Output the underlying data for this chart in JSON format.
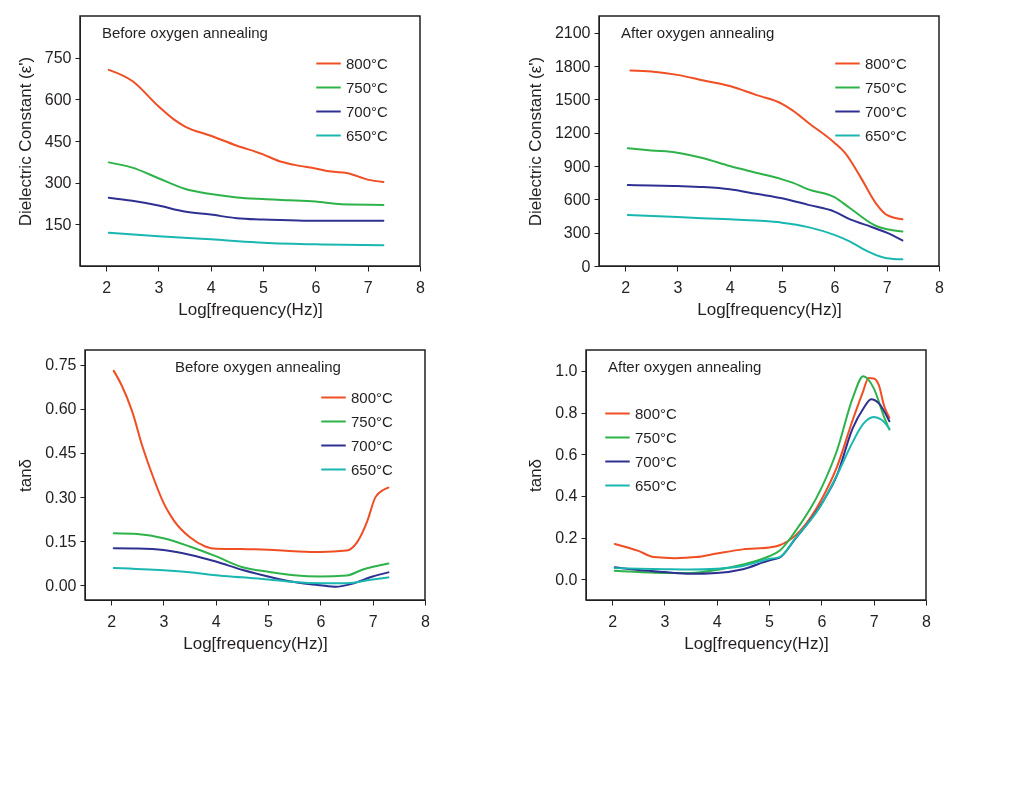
{
  "chart_data": [
    {
      "type": "line",
      "xlabel": "Log[frequency(Hz)]",
      "ylabel": "Dielectric Constant (ε')",
      "annotations": [
        "Before oxygen annealing"
      ],
      "legend": "top right",
      "grid": false,
      "xlim": [
        1.5,
        8
      ],
      "xticks": [
        2,
        3,
        4,
        5,
        6,
        7,
        8
      ],
      "ylim": [
        0,
        900
      ],
      "yticks": [
        150,
        300,
        450,
        600,
        750
      ],
      "series": [
        {
          "name": "800°C",
          "color": "#f04e23",
          "x": [
            2.05,
            2.5,
            3,
            3.3,
            3.5,
            4,
            4.5,
            5,
            5.3,
            5.6,
            6,
            6.3,
            6.6,
            7,
            7.3
          ],
          "values": [
            706,
            666,
            575,
            527,
            503,
            469,
            433,
            402,
            378,
            364,
            351,
            340,
            335,
            311,
            302
          ]
        },
        {
          "name": "750°C",
          "color": "#2db34a",
          "x": [
            2.05,
            2.5,
            3,
            3.5,
            4,
            4.5,
            5,
            5.5,
            6,
            6.5,
            7.3
          ],
          "values": [
            373,
            354,
            316,
            278,
            259,
            247,
            241,
            237,
            232,
            222,
            220
          ]
        },
        {
          "name": "700°C",
          "color": "#2e3192",
          "x": [
            2.05,
            2.5,
            3,
            3.5,
            4,
            4.5,
            5,
            5.5,
            6,
            7.3
          ],
          "values": [
            246,
            235,
            218,
            196,
            185,
            172,
            167,
            165,
            163,
            163
          ]
        },
        {
          "name": "650°C",
          "color": "#1ab7b0",
          "x": [
            2.05,
            3,
            4,
            5,
            6,
            7.3
          ],
          "values": [
            120,
            107,
            96,
            84,
            78,
            75
          ]
        }
      ]
    },
    {
      "type": "line",
      "xlabel": "Log[frequency(Hz)]",
      "ylabel": "Dielectric Constant (ε')",
      "annotations": [
        "After oxygen annealing"
      ],
      "legend": "top right",
      "grid": false,
      "xlim": [
        1.5,
        8
      ],
      "xticks": [
        2,
        3,
        4,
        5,
        6,
        7,
        8
      ],
      "ylim": [
        0,
        2250
      ],
      "yticks": [
        0,
        300,
        600,
        900,
        1200,
        1500,
        1800,
        2100
      ],
      "series": [
        {
          "name": "800°C",
          "color": "#f04e23",
          "x": [
            2.1,
            2.5,
            3,
            3.5,
            4,
            4.5,
            5,
            5.2,
            5.5,
            6,
            6.2,
            6.5,
            6.8,
            7,
            7.3
          ],
          "values": [
            1760,
            1750,
            1720,
            1670,
            1620,
            1540,
            1460,
            1400,
            1290,
            1110,
            1020,
            800,
            560,
            460,
            420
          ]
        },
        {
          "name": "750°C",
          "color": "#2db34a",
          "x": [
            2.05,
            2.5,
            3,
            3.5,
            4,
            4.5,
            5,
            5.2,
            5.5,
            6,
            6.3,
            6.8,
            7.3
          ],
          "values": [
            1060,
            1040,
            1020,
            970,
            900,
            840,
            780,
            750,
            690,
            620,
            520,
            360,
            310
          ]
        },
        {
          "name": "700°C",
          "color": "#2e3192",
          "x": [
            2.05,
            3,
            3.5,
            4,
            4.5,
            5,
            5.5,
            6,
            6.3,
            6.6,
            7,
            7.3
          ],
          "values": [
            730,
            720,
            710,
            690,
            650,
            610,
            550,
            490,
            420,
            370,
            300,
            230
          ]
        },
        {
          "name": "650°C",
          "color": "#1ab7b0",
          "x": [
            2.05,
            3,
            4,
            4.5,
            5,
            5.5,
            6,
            6.3,
            6.6,
            7,
            7.3
          ],
          "values": [
            460,
            440,
            420,
            410,
            390,
            350,
            280,
            220,
            140,
            70,
            60
          ]
        }
      ]
    },
    {
      "type": "line",
      "xlabel": "Log[frequency(Hz)]",
      "ylabel": "tanδ",
      "annotations": [
        "Before oxygen annealing"
      ],
      "legend": "top right",
      "grid": false,
      "xlim": [
        1.5,
        8
      ],
      "xticks": [
        2,
        3,
        4,
        5,
        6,
        7,
        8
      ],
      "ylim": [
        -0.05,
        0.8
      ],
      "yticks": [
        {
          "value": 0,
          "label": "0.00"
        },
        {
          "value": 0.15,
          "label": "0.15"
        },
        {
          "value": 0.3,
          "label": "0.30"
        },
        {
          "value": 0.45,
          "label": "0.45"
        },
        {
          "value": 0.6,
          "label": "0.60"
        },
        {
          "value": 0.75,
          "label": "0.75"
        }
      ],
      "series": [
        {
          "name": "800°C",
          "color": "#f04e23",
          "x": [
            2.05,
            2.2,
            2.4,
            2.6,
            2.8,
            3,
            3.2,
            3.5,
            3.8,
            4,
            4.5,
            5,
            5.5,
            6,
            6.5,
            6.7,
            6.9,
            7.05,
            7.2,
            7.3
          ],
          "values": [
            0.729,
            0.68,
            0.592,
            0.471,
            0.369,
            0.281,
            0.22,
            0.164,
            0.132,
            0.124,
            0.123,
            0.121,
            0.116,
            0.113,
            0.118,
            0.146,
            0.22,
            0.299,
            0.324,
            0.332
          ]
        },
        {
          "name": "750°C",
          "color": "#2db34a",
          "x": [
            2.05,
            2.5,
            3,
            3.5,
            4,
            4.5,
            5,
            5.5,
            6,
            6.5,
            6.8,
            7.3
          ],
          "values": [
            0.177,
            0.174,
            0.16,
            0.132,
            0.099,
            0.062,
            0.046,
            0.034,
            0.03,
            0.033,
            0.053,
            0.074
          ]
        },
        {
          "name": "700°C",
          "color": "#2e3192",
          "x": [
            2.05,
            2.5,
            3,
            3.5,
            4,
            4.5,
            5,
            5.5,
            6,
            6.3,
            6.6,
            7,
            7.3
          ],
          "values": [
            0.126,
            0.125,
            0.12,
            0.104,
            0.081,
            0.053,
            0.03,
            0.011,
            0.0,
            -0.005,
            0.005,
            0.03,
            0.044
          ]
        },
        {
          "name": "650°C",
          "color": "#1ab7b0",
          "x": [
            2.05,
            3,
            3.5,
            4,
            4.5,
            5,
            5.5,
            6,
            6.5,
            7,
            7.3
          ],
          "values": [
            0.059,
            0.051,
            0.044,
            0.034,
            0.027,
            0.02,
            0.011,
            0.007,
            0.007,
            0.02,
            0.027
          ]
        }
      ]
    },
    {
      "type": "line",
      "xlabel": "Log[frequency(Hz)]",
      "ylabel": "tanδ",
      "annotations": [
        "After oxygen annealing"
      ],
      "legend": "left",
      "grid": false,
      "xlim": [
        1.5,
        8
      ],
      "xticks": [
        2,
        3,
        4,
        5,
        6,
        7,
        8
      ],
      "ylim": [
        -0.1,
        1.1
      ],
      "yticks": [
        {
          "value": 0,
          "label": "0.0"
        },
        {
          "value": 0.2,
          "label": "0.2"
        },
        {
          "value": 0.4,
          "label": "0.4"
        },
        {
          "value": 0.6,
          "label": "0.6"
        },
        {
          "value": 0.8,
          "label": "0.8"
        },
        {
          "value": 1,
          "label": "1.0"
        }
      ],
      "series": [
        {
          "name": "800°C",
          "color": "#f04e23",
          "x": [
            2.05,
            2.5,
            2.8,
            3.2,
            3.6,
            4,
            4.5,
            5,
            5.2,
            5.5,
            6,
            6.3,
            6.6,
            6.8,
            6.9,
            7,
            7.1,
            7.2,
            7.3
          ],
          "values": [
            0.169,
            0.136,
            0.106,
            0.101,
            0.106,
            0.123,
            0.143,
            0.152,
            0.163,
            0.209,
            0.381,
            0.54,
            0.765,
            0.903,
            0.966,
            0.963,
            0.93,
            0.831,
            0.775
          ]
        },
        {
          "name": "750°C",
          "color": "#2db34a",
          "x": [
            2.05,
            2.5,
            3,
            3.5,
            4,
            4.5,
            5,
            5.2,
            5.5,
            6,
            6.3,
            6.6,
            6.8,
            7,
            7.2,
            7.3
          ],
          "values": [
            0.04,
            0.034,
            0.03,
            0.03,
            0.044,
            0.07,
            0.11,
            0.136,
            0.229,
            0.437,
            0.619,
            0.87,
            0.974,
            0.917,
            0.778,
            0.718
          ]
        },
        {
          "name": "700°C",
          "color": "#2e3192",
          "x": [
            2.05,
            2.5,
            3,
            3.5,
            4,
            4.5,
            5,
            5.2,
            5.5,
            6,
            6.3,
            6.6,
            6.8,
            6.95,
            7.1,
            7.3
          ],
          "values": [
            0.057,
            0.044,
            0.034,
            0.026,
            0.03,
            0.048,
            0.09,
            0.103,
            0.193,
            0.361,
            0.5,
            0.725,
            0.818,
            0.864,
            0.844,
            0.758
          ]
        },
        {
          "name": "650°C",
          "color": "#1ab7b0",
          "x": [
            2.05,
            3,
            3.5,
            4,
            4.5,
            5,
            5.2,
            5.5,
            6,
            6.3,
            6.6,
            6.8,
            7,
            7.15,
            7.3
          ],
          "values": [
            0.053,
            0.048,
            0.046,
            0.05,
            0.063,
            0.097,
            0.106,
            0.196,
            0.357,
            0.5,
            0.659,
            0.745,
            0.778,
            0.765,
            0.722
          ]
        }
      ]
    }
  ]
}
